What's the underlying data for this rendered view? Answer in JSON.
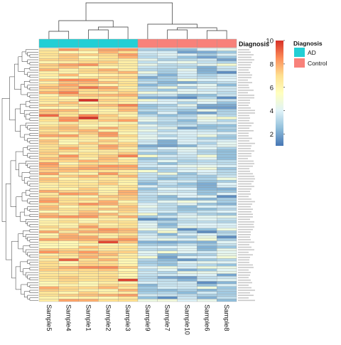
{
  "chart_data": {
    "type": "heatmap",
    "columns": [
      "Sample5",
      "Sample4",
      "Sample1",
      "Sample2",
      "Sample3",
      "Sample9",
      "Sample7",
      "Sample10",
      "Sample6",
      "Sample8"
    ],
    "column_groups": [
      "AD",
      "AD",
      "AD",
      "AD",
      "AD",
      "Control",
      "Control",
      "Control",
      "Control",
      "Control"
    ],
    "annotation": {
      "title": "Diagnosis",
      "legend_title": "Diagnosis",
      "levels": [
        {
          "name": "AD",
          "color": "#22cfd5"
        },
        {
          "name": "Control",
          "color": "#f8817a"
        }
      ]
    },
    "row_count": 100,
    "value_range": [
      1,
      10
    ],
    "colorbar_ticks": [
      2,
      4,
      6,
      8,
      10
    ],
    "color_stops": [
      "#4575b4",
      "#91bfdb",
      "#e0f3f8",
      "#ffffbf",
      "#fee090",
      "#fc8d59",
      "#d73027"
    ],
    "group_levels": {
      "AD": {
        "typical": 7,
        "min": 5.8,
        "max": 10
      },
      "Control": {
        "typical": 3.5,
        "min": 1.5,
        "max": 6
      }
    },
    "row_dendrogram": true,
    "column_dendrogram": true,
    "legend_position": "right"
  }
}
